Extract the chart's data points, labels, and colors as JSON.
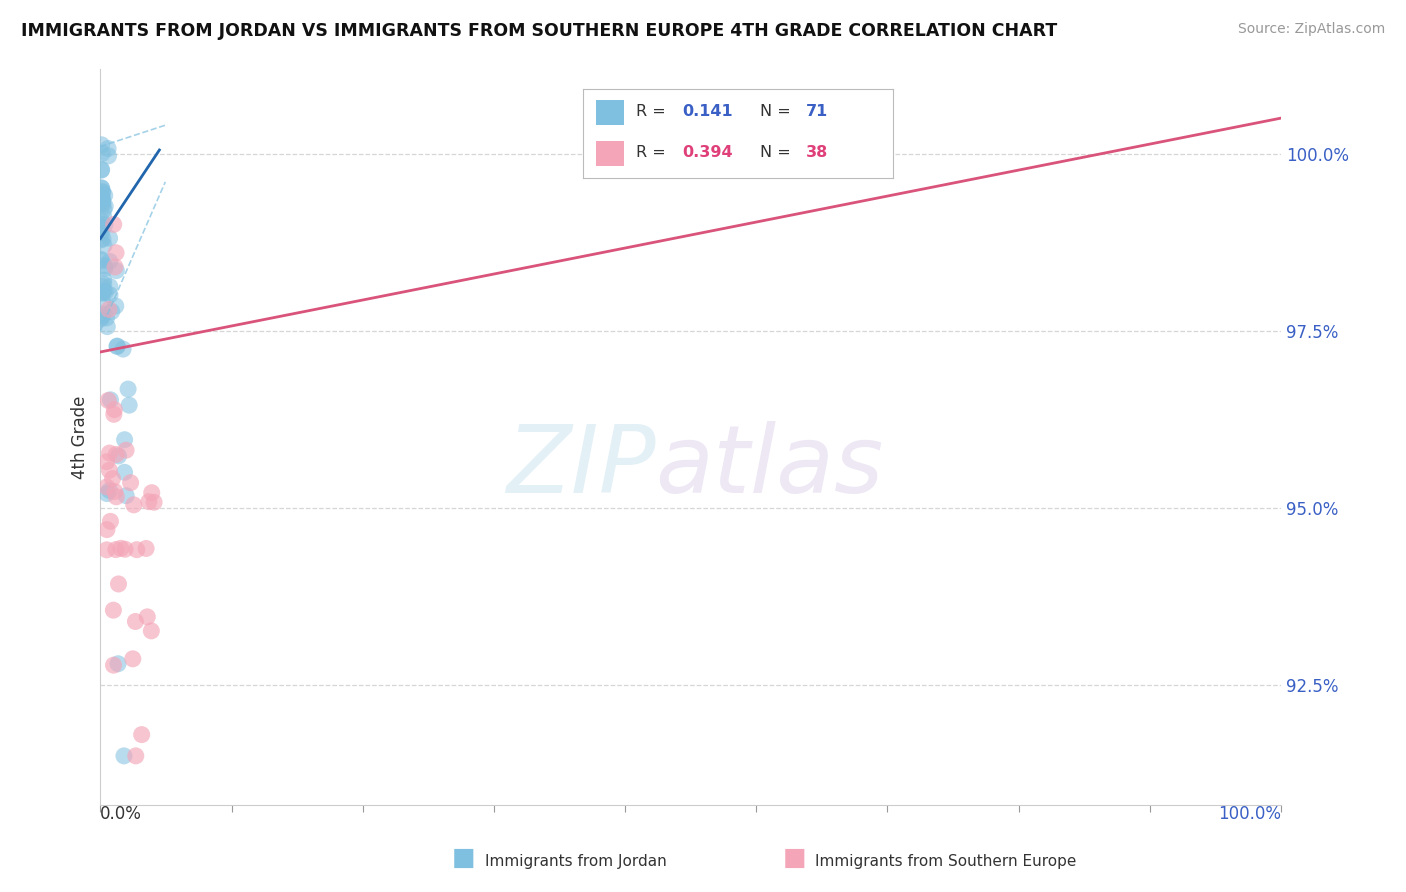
{
  "title": "IMMIGRANTS FROM JORDAN VS IMMIGRANTS FROM SOUTHERN EUROPE 4TH GRADE CORRELATION CHART",
  "source": "Source: ZipAtlas.com",
  "ylabel": "4th Grade",
  "y_ticks": [
    92.5,
    95.0,
    97.5,
    100.0
  ],
  "y_tick_labels": [
    "92.5%",
    "95.0%",
    "97.5%",
    "100.0%"
  ],
  "blue_color": "#7fbfdf",
  "blue_line_color": "#2166ac",
  "blue_dash_color": "#7fbfdf",
  "pink_color": "#f4a6b8",
  "pink_line_color": "#d9537a",
  "xmin": 0.0,
  "xmax": 100.0,
  "ymin": 90.8,
  "ymax": 101.2,
  "watermark_zip": "ZIP",
  "watermark_atlas": "atlas",
  "background_color": "#ffffff",
  "grid_color": "#cccccc",
  "blue_r": "0.141",
  "blue_n": "71",
  "pink_r": "0.394",
  "pink_n": "38",
  "pink_line_x0": 0.0,
  "pink_line_y0": 97.2,
  "pink_line_x1": 100.0,
  "pink_line_y1": 100.5,
  "blue_line_x0": 0.0,
  "blue_line_y0": 98.8,
  "blue_line_x1": 5.0,
  "blue_line_y1": 100.05,
  "blue_dash_x0": 0.0,
  "blue_dash_y0_upper": 100.1,
  "blue_dash_y0_lower": 97.5,
  "blue_dash_x1": 5.5,
  "blue_dash_y1_upper": 100.4,
  "blue_dash_y1_lower": 99.6,
  "n_blue": 71,
  "n_pink": 38
}
